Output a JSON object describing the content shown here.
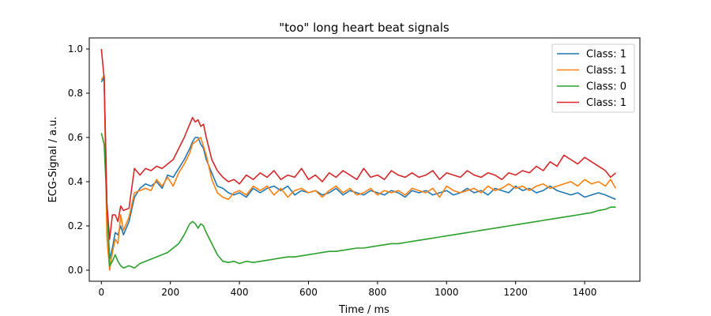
{
  "chart_data": {
    "type": "line",
    "title": "\"too\" long heart beat signals",
    "xlabel": "Time / ms",
    "ylabel": "ECG-Signal / a.u.",
    "xlim": [
      -35,
      1560
    ],
    "ylim": [
      -0.05,
      1.05
    ],
    "xticks": [
      0,
      200,
      400,
      600,
      800,
      1000,
      1200,
      1400
    ],
    "yticks": [
      0.0,
      0.2,
      0.4,
      0.6,
      0.8,
      1.0
    ],
    "xtick_labels": [
      "0",
      "200",
      "400",
      "600",
      "800",
      "1000",
      "1200",
      "1400"
    ],
    "ytick_labels": [
      "0.0",
      "0.2",
      "0.4",
      "0.6",
      "0.8",
      "1.0"
    ],
    "grid": false,
    "legend_position": "top-right",
    "series": [
      {
        "name": "Class: 1",
        "color": "#1f77b4",
        "x": [
          0,
          8,
          16,
          24,
          32,
          40,
          48,
          56,
          64,
          80,
          96,
          112,
          128,
          144,
          160,
          176,
          192,
          208,
          224,
          240,
          256,
          264,
          272,
          280,
          288,
          296,
          304,
          320,
          336,
          352,
          368,
          384,
          400,
          420,
          440,
          460,
          480,
          500,
          520,
          540,
          560,
          580,
          600,
          620,
          640,
          660,
          680,
          700,
          720,
          740,
          760,
          780,
          800,
          820,
          840,
          860,
          880,
          900,
          920,
          940,
          960,
          980,
          1000,
          1020,
          1040,
          1060,
          1080,
          1100,
          1120,
          1140,
          1160,
          1180,
          1200,
          1220,
          1240,
          1260,
          1280,
          1300,
          1320,
          1340,
          1360,
          1380,
          1400,
          1420,
          1440,
          1460,
          1475,
          1490
        ],
        "values": [
          0.85,
          0.87,
          0.3,
          0.05,
          0.1,
          0.17,
          0.16,
          0.2,
          0.16,
          0.22,
          0.33,
          0.37,
          0.39,
          0.38,
          0.4,
          0.37,
          0.43,
          0.42,
          0.46,
          0.5,
          0.55,
          0.58,
          0.6,
          0.6,
          0.57,
          0.55,
          0.5,
          0.44,
          0.38,
          0.37,
          0.35,
          0.34,
          0.35,
          0.33,
          0.37,
          0.35,
          0.37,
          0.38,
          0.36,
          0.38,
          0.34,
          0.36,
          0.35,
          0.36,
          0.34,
          0.35,
          0.37,
          0.34,
          0.36,
          0.35,
          0.34,
          0.36,
          0.35,
          0.34,
          0.36,
          0.35,
          0.33,
          0.36,
          0.35,
          0.36,
          0.34,
          0.35,
          0.36,
          0.34,
          0.35,
          0.37,
          0.35,
          0.36,
          0.34,
          0.37,
          0.36,
          0.35,
          0.38,
          0.36,
          0.37,
          0.35,
          0.36,
          0.38,
          0.36,
          0.35,
          0.34,
          0.35,
          0.33,
          0.34,
          0.35,
          0.34,
          0.33,
          0.32
        ]
      },
      {
        "name": "Class: 1",
        "color": "#ff7f0e",
        "x": [
          0,
          8,
          16,
          24,
          32,
          40,
          48,
          56,
          64,
          80,
          96,
          112,
          128,
          144,
          160,
          176,
          192,
          208,
          224,
          240,
          256,
          264,
          272,
          280,
          288,
          296,
          304,
          320,
          336,
          352,
          368,
          384,
          400,
          420,
          440,
          460,
          480,
          500,
          520,
          540,
          560,
          580,
          600,
          620,
          640,
          660,
          680,
          700,
          720,
          740,
          760,
          780,
          800,
          820,
          840,
          860,
          880,
          900,
          920,
          940,
          960,
          980,
          1000,
          1020,
          1040,
          1060,
          1080,
          1100,
          1120,
          1140,
          1160,
          1180,
          1200,
          1220,
          1240,
          1260,
          1280,
          1300,
          1320,
          1340,
          1360,
          1380,
          1400,
          1420,
          1440,
          1460,
          1475,
          1490
        ],
        "values": [
          0.86,
          0.88,
          0.15,
          0.0,
          0.08,
          0.14,
          0.12,
          0.25,
          0.18,
          0.24,
          0.35,
          0.36,
          0.37,
          0.36,
          0.41,
          0.38,
          0.42,
          0.38,
          0.44,
          0.48,
          0.53,
          0.57,
          0.58,
          0.59,
          0.6,
          0.56,
          0.52,
          0.41,
          0.35,
          0.33,
          0.32,
          0.35,
          0.36,
          0.34,
          0.38,
          0.36,
          0.38,
          0.34,
          0.37,
          0.33,
          0.36,
          0.37,
          0.35,
          0.36,
          0.33,
          0.36,
          0.38,
          0.35,
          0.37,
          0.34,
          0.35,
          0.37,
          0.34,
          0.36,
          0.35,
          0.36,
          0.34,
          0.37,
          0.36,
          0.35,
          0.37,
          0.33,
          0.38,
          0.36,
          0.35,
          0.36,
          0.37,
          0.35,
          0.38,
          0.36,
          0.37,
          0.39,
          0.37,
          0.38,
          0.36,
          0.38,
          0.39,
          0.37,
          0.38,
          0.39,
          0.4,
          0.38,
          0.41,
          0.39,
          0.4,
          0.38,
          0.41,
          0.37
        ]
      },
      {
        "name": "Class: 0",
        "color": "#2ca02c",
        "x": [
          0,
          8,
          16,
          24,
          32,
          40,
          48,
          56,
          64,
          80,
          96,
          112,
          128,
          144,
          160,
          176,
          192,
          208,
          224,
          240,
          256,
          264,
          272,
          280,
          288,
          296,
          304,
          320,
          336,
          352,
          368,
          384,
          400,
          420,
          440,
          460,
          480,
          500,
          520,
          540,
          560,
          580,
          600,
          620,
          640,
          660,
          680,
          700,
          720,
          740,
          760,
          780,
          800,
          820,
          840,
          860,
          880,
          900,
          920,
          940,
          960,
          980,
          1000,
          1020,
          1040,
          1060,
          1080,
          1100,
          1120,
          1140,
          1160,
          1180,
          1200,
          1220,
          1240,
          1260,
          1280,
          1300,
          1320,
          1340,
          1360,
          1380,
          1400,
          1420,
          1440,
          1460,
          1475,
          1490
        ],
        "values": [
          0.62,
          0.57,
          0.3,
          0.02,
          0.04,
          0.07,
          0.04,
          0.02,
          0.01,
          0.02,
          0.01,
          0.03,
          0.04,
          0.05,
          0.06,
          0.07,
          0.08,
          0.1,
          0.12,
          0.16,
          0.21,
          0.22,
          0.21,
          0.19,
          0.21,
          0.2,
          0.17,
          0.12,
          0.07,
          0.04,
          0.035,
          0.04,
          0.03,
          0.04,
          0.035,
          0.04,
          0.045,
          0.05,
          0.055,
          0.06,
          0.06,
          0.065,
          0.07,
          0.075,
          0.08,
          0.085,
          0.085,
          0.09,
          0.095,
          0.1,
          0.1,
          0.105,
          0.11,
          0.115,
          0.12,
          0.12,
          0.125,
          0.13,
          0.135,
          0.14,
          0.145,
          0.15,
          0.155,
          0.16,
          0.165,
          0.17,
          0.175,
          0.18,
          0.185,
          0.19,
          0.195,
          0.2,
          0.205,
          0.21,
          0.215,
          0.22,
          0.225,
          0.23,
          0.235,
          0.24,
          0.245,
          0.25,
          0.255,
          0.26,
          0.27,
          0.275,
          0.285,
          0.285
        ]
      },
      {
        "name": "Class: 1",
        "color": "#d62728",
        "x": [
          0,
          8,
          16,
          24,
          32,
          40,
          48,
          56,
          64,
          80,
          96,
          112,
          128,
          144,
          160,
          176,
          192,
          208,
          224,
          240,
          256,
          264,
          272,
          280,
          288,
          296,
          304,
          320,
          336,
          352,
          368,
          384,
          400,
          420,
          440,
          460,
          480,
          500,
          520,
          540,
          560,
          580,
          600,
          620,
          640,
          660,
          680,
          700,
          720,
          740,
          760,
          780,
          800,
          820,
          840,
          860,
          880,
          900,
          920,
          940,
          960,
          980,
          1000,
          1020,
          1040,
          1060,
          1080,
          1100,
          1120,
          1140,
          1160,
          1180,
          1200,
          1220,
          1240,
          1260,
          1280,
          1300,
          1320,
          1340,
          1360,
          1380,
          1400,
          1420,
          1440,
          1460,
          1475,
          1490
        ],
        "values": [
          1.0,
          0.87,
          0.3,
          0.14,
          0.25,
          0.25,
          0.22,
          0.29,
          0.27,
          0.28,
          0.46,
          0.43,
          0.46,
          0.45,
          0.47,
          0.46,
          0.48,
          0.5,
          0.55,
          0.6,
          0.66,
          0.69,
          0.67,
          0.68,
          0.65,
          0.66,
          0.6,
          0.5,
          0.45,
          0.42,
          0.4,
          0.41,
          0.39,
          0.43,
          0.41,
          0.44,
          0.42,
          0.45,
          0.41,
          0.43,
          0.42,
          0.46,
          0.41,
          0.43,
          0.4,
          0.44,
          0.42,
          0.45,
          0.43,
          0.41,
          0.46,
          0.42,
          0.43,
          0.41,
          0.45,
          0.43,
          0.42,
          0.44,
          0.42,
          0.43,
          0.45,
          0.41,
          0.44,
          0.43,
          0.42,
          0.45,
          0.43,
          0.42,
          0.44,
          0.43,
          0.41,
          0.44,
          0.43,
          0.45,
          0.44,
          0.47,
          0.45,
          0.49,
          0.47,
          0.52,
          0.5,
          0.48,
          0.51,
          0.49,
          0.47,
          0.45,
          0.42,
          0.44
        ]
      }
    ]
  }
}
